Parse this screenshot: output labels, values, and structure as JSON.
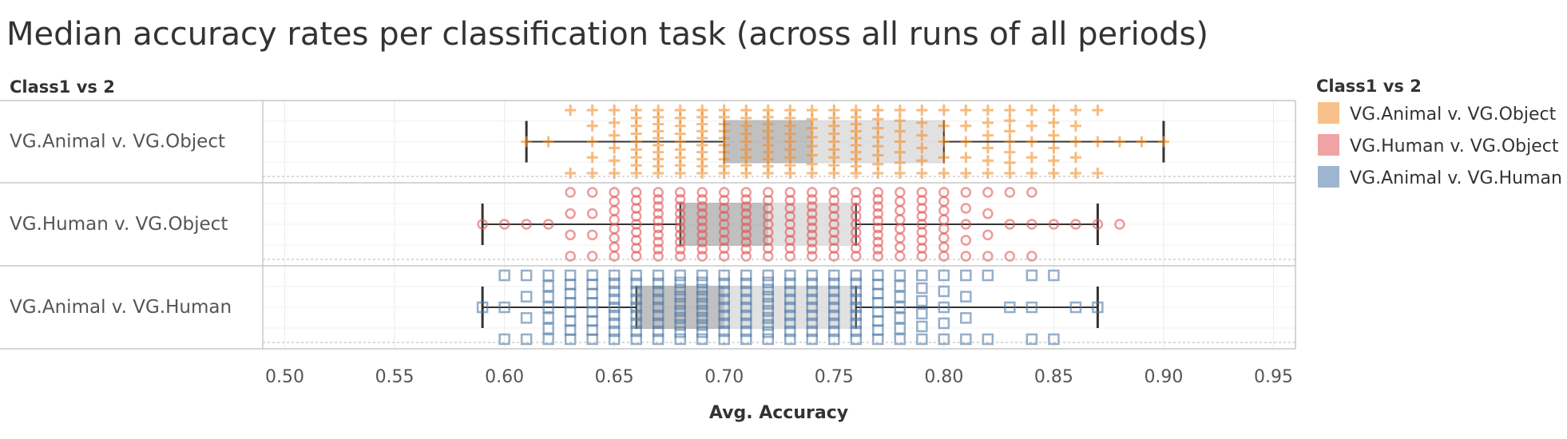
{
  "chart_data": {
    "type": "scatter",
    "title": "Median accuracy rates per classification task (across all runs of all periods)",
    "row_header": "Class1 vs 2",
    "xlabel": "Avg. Accuracy",
    "xlim": [
      0.49,
      0.96
    ],
    "x_ticks": [
      "0.50",
      "0.55",
      "0.60",
      "0.65",
      "0.70",
      "0.75",
      "0.80",
      "0.85",
      "0.90",
      "0.95"
    ],
    "x_tick_values": [
      0.5,
      0.55,
      0.6,
      0.65,
      0.7,
      0.75,
      0.8,
      0.85,
      0.9,
      0.95
    ],
    "grid": true,
    "legend": {
      "title": "Class1 vs 2",
      "placement": "right"
    },
    "series": [
      {
        "name": "VG.Animal v. VG.Object",
        "color": "#f28e2b",
        "marker": "plus",
        "box": {
          "whisker_low": 0.61,
          "q1": 0.7,
          "median": 0.74,
          "q3": 0.8,
          "whisker_high": 0.9
        },
        "points": [
          {
            "x": 0.61,
            "n": 1
          },
          {
            "x": 0.62,
            "n": 1
          },
          {
            "x": 0.63,
            "n": 2
          },
          {
            "x": 0.64,
            "n": 5
          },
          {
            "x": 0.65,
            "n": 6
          },
          {
            "x": 0.66,
            "n": 9
          },
          {
            "x": 0.67,
            "n": 10
          },
          {
            "x": 0.68,
            "n": 9
          },
          {
            "x": 0.69,
            "n": 10
          },
          {
            "x": 0.7,
            "n": 10
          },
          {
            "x": 0.71,
            "n": 9
          },
          {
            "x": 0.72,
            "n": 10
          },
          {
            "x": 0.73,
            "n": 9
          },
          {
            "x": 0.74,
            "n": 8
          },
          {
            "x": 0.75,
            "n": 9
          },
          {
            "x": 0.76,
            "n": 10
          },
          {
            "x": 0.77,
            "n": 8
          },
          {
            "x": 0.78,
            "n": 7
          },
          {
            "x": 0.79,
            "n": 6
          },
          {
            "x": 0.8,
            "n": 5
          },
          {
            "x": 0.81,
            "n": 5
          },
          {
            "x": 0.82,
            "n": 6
          },
          {
            "x": 0.83,
            "n": 7
          },
          {
            "x": 0.84,
            "n": 5
          },
          {
            "x": 0.85,
            "n": 6
          },
          {
            "x": 0.86,
            "n": 5
          },
          {
            "x": 0.87,
            "n": 3
          },
          {
            "x": 0.88,
            "n": 1
          },
          {
            "x": 0.89,
            "n": 1
          },
          {
            "x": 0.9,
            "n": 1
          }
        ]
      },
      {
        "name": "VG.Human v. VG.Object",
        "color": "#e15759",
        "marker": "circle",
        "box": {
          "whisker_low": 0.59,
          "q1": 0.68,
          "median": 0.72,
          "q3": 0.76,
          "whisker_high": 0.87
        },
        "points": [
          {
            "x": 0.59,
            "n": 1
          },
          {
            "x": 0.6,
            "n": 1
          },
          {
            "x": 0.61,
            "n": 1
          },
          {
            "x": 0.62,
            "n": 1
          },
          {
            "x": 0.63,
            "n": 4
          },
          {
            "x": 0.64,
            "n": 4
          },
          {
            "x": 0.65,
            "n": 8
          },
          {
            "x": 0.66,
            "n": 9
          },
          {
            "x": 0.67,
            "n": 10
          },
          {
            "x": 0.68,
            "n": 10
          },
          {
            "x": 0.69,
            "n": 10
          },
          {
            "x": 0.7,
            "n": 9
          },
          {
            "x": 0.71,
            "n": 10
          },
          {
            "x": 0.72,
            "n": 9
          },
          {
            "x": 0.73,
            "n": 9
          },
          {
            "x": 0.74,
            "n": 10
          },
          {
            "x": 0.75,
            "n": 9
          },
          {
            "x": 0.76,
            "n": 9
          },
          {
            "x": 0.77,
            "n": 10
          },
          {
            "x": 0.78,
            "n": 8
          },
          {
            "x": 0.79,
            "n": 9
          },
          {
            "x": 0.8,
            "n": 8
          },
          {
            "x": 0.81,
            "n": 5
          },
          {
            "x": 0.82,
            "n": 4
          },
          {
            "x": 0.83,
            "n": 3
          },
          {
            "x": 0.84,
            "n": 3
          },
          {
            "x": 0.85,
            "n": 1
          },
          {
            "x": 0.86,
            "n": 1
          },
          {
            "x": 0.87,
            "n": 1
          },
          {
            "x": 0.88,
            "n": 1
          }
        ]
      },
      {
        "name": "VG.Animal v. VG.Human",
        "color": "#4e79a7",
        "marker": "square",
        "box": {
          "whisker_low": 0.59,
          "q1": 0.66,
          "median": 0.7,
          "q3": 0.76,
          "whisker_high": 0.87
        },
        "points": [
          {
            "x": 0.59,
            "n": 1
          },
          {
            "x": 0.6,
            "n": 3
          },
          {
            "x": 0.61,
            "n": 4
          },
          {
            "x": 0.62,
            "n": 7
          },
          {
            "x": 0.63,
            "n": 8
          },
          {
            "x": 0.64,
            "n": 8
          },
          {
            "x": 0.65,
            "n": 9
          },
          {
            "x": 0.66,
            "n": 9
          },
          {
            "x": 0.67,
            "n": 9
          },
          {
            "x": 0.68,
            "n": 10
          },
          {
            "x": 0.69,
            "n": 10
          },
          {
            "x": 0.7,
            "n": 9
          },
          {
            "x": 0.71,
            "n": 9
          },
          {
            "x": 0.72,
            "n": 10
          },
          {
            "x": 0.73,
            "n": 9
          },
          {
            "x": 0.74,
            "n": 9
          },
          {
            "x": 0.75,
            "n": 9
          },
          {
            "x": 0.76,
            "n": 9
          },
          {
            "x": 0.77,
            "n": 8
          },
          {
            "x": 0.78,
            "n": 7
          },
          {
            "x": 0.79,
            "n": 6
          },
          {
            "x": 0.8,
            "n": 5
          },
          {
            "x": 0.81,
            "n": 4
          },
          {
            "x": 0.82,
            "n": 2
          },
          {
            "x": 0.83,
            "n": 1
          },
          {
            "x": 0.84,
            "n": 3
          },
          {
            "x": 0.85,
            "n": 2
          },
          {
            "x": 0.86,
            "n": 1
          },
          {
            "x": 0.87,
            "n": 1
          }
        ]
      }
    ]
  }
}
